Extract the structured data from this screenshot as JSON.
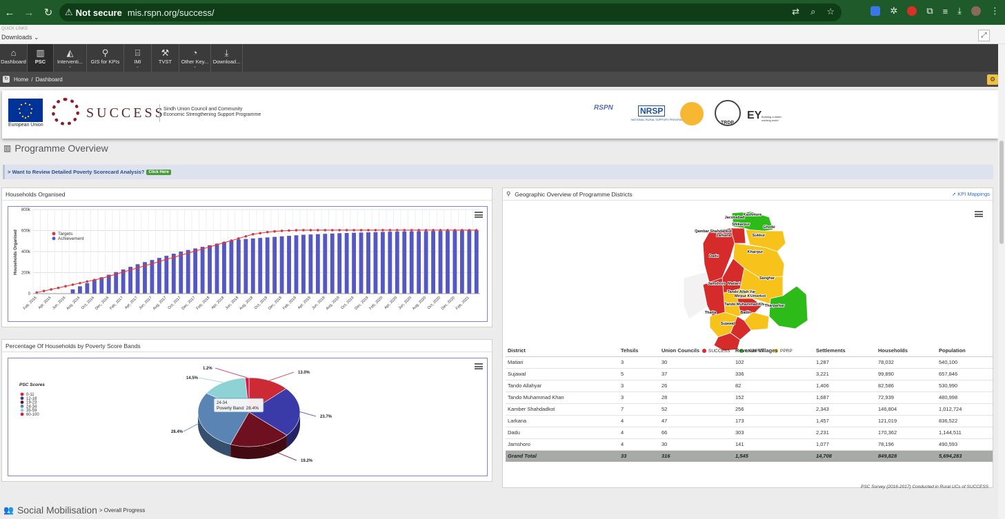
{
  "browser": {
    "not_secure": "Not secure",
    "url": "mis.rspn.org/success/"
  },
  "quicklinks": {
    "caption": "QUICK LINKS",
    "downloads": "Downloads ⌄"
  },
  "nav": [
    {
      "label": "Dashboard",
      "icon": "home-icon",
      "glyph": "⌂"
    },
    {
      "label": "PSC",
      "icon": "bar-chart-icon",
      "glyph": "▥",
      "active": true
    },
    {
      "label": "Interventi...",
      "icon": "area-chart-icon",
      "glyph": "◭",
      "dropdown": true
    },
    {
      "label": "GIS for KPIs",
      "icon": "map-marker-icon",
      "glyph": "⚲"
    },
    {
      "label": "IMI",
      "icon": "bank-icon",
      "glyph": "⌸",
      "dropdown": true
    },
    {
      "label": "TVST",
      "icon": "wrench-icon",
      "glyph": "⚒"
    },
    {
      "label": "Other Key...",
      "icon": "pie-chart-icon",
      "glyph": "◔",
      "dropdown": true
    },
    {
      "label": "Download...",
      "icon": "download-icon",
      "glyph": "⤓"
    }
  ],
  "breadcrumb": {
    "home": "Home",
    "sep": "/",
    "current": "Dashboard"
  },
  "logos": {
    "eu": "European Union",
    "success": "SUCCESS",
    "tagline1": "Sindh Union Council and Community",
    "tagline2": "Economic Strengthening Support Programme",
    "rspn": "RSPN",
    "nrsp": "NRSP",
    "nrsp_sub": "NATIONAL RURAL SUPPORT PROGRAMME",
    "trdp": "TRDP",
    "ey": "EY",
    "ey_sub": "Building a better working world"
  },
  "page_title": "Programme Overview",
  "banner": {
    "text": "> Want to Review Detailed Poverty Scorecard Analysis?",
    "button": "Click Here"
  },
  "households_panel": {
    "title": "Households Organised"
  },
  "poverty_panel": {
    "title": "Percentage Of Households by Poverty Score Bands"
  },
  "geo_panel": {
    "title": "Geographic Overview of Programme Districts",
    "kpi_link": "KPI Mappings"
  },
  "chart_data": [
    {
      "type": "bar",
      "title": "",
      "ylabel": "Households Organised",
      "ylim": [
        0,
        800000
      ],
      "yticks": [
        "0",
        "200k",
        "400k",
        "600k",
        "800k"
      ],
      "categories": [
        "Feb, 2016",
        "Mar, 2016",
        "Apr, 2016",
        "May, 2016",
        "Jun, 2016",
        "Jul, 2016",
        "Aug, 2016",
        "Sep, 2016",
        "Oct, 2016",
        "Nov, 2016",
        "Dec, 2016",
        "Jan, 2017",
        "Feb, 2017",
        "Mar, 2017",
        "Apr, 2017",
        "May, 2017",
        "Jun, 2017",
        "Jul, 2017",
        "Aug, 2017",
        "Sep, 2017",
        "Oct, 2017",
        "Nov, 2017",
        "Dec, 2017",
        "Jan, 2018",
        "Feb, 2018",
        "Mar, 2018",
        "Apr, 2018",
        "May, 2018",
        "Jun, 2018",
        "Jul, 2018",
        "Aug, 2018",
        "Sep, 2018",
        "Oct, 2018",
        "Nov, 2018",
        "Dec, 2018",
        "Jan, 2019",
        "Feb, 2019",
        "Mar, 2019",
        "Apr, 2019",
        "May, 2019",
        "Jun, 2019",
        "Jul, 2019",
        "Aug, 2019",
        "Sep, 2019",
        "Oct, 2019",
        "Nov, 2019",
        "Dec, 2019",
        "Jan, 2020",
        "Feb, 2020",
        "Mar, 2020",
        "Apr, 2020",
        "May, 2020",
        "Jun, 2020",
        "Jul, 2020",
        "Aug, 2020",
        "Sep, 2020",
        "Oct, 2020",
        "Nov, 2020",
        "Dec, 2020",
        "Jan, 2021",
        "Feb, 2021",
        "Mar, 2021"
      ],
      "xtick_labels": [
        "Feb, 2016",
        "Apr, 2016",
        "Jun, 2016",
        "Aug, 2016",
        "Oct, 2016",
        "Dec, 2016",
        "Feb, 2017",
        "Apr, 2017",
        "Jun, 2017",
        "Aug, 2017",
        "Oct, 2017",
        "Dec, 2017",
        "Feb, 2018",
        "Apr, 2018",
        "Jun, 2018",
        "Aug, 2018",
        "Oct, 2018",
        "Dec, 2018",
        "Feb, 2019",
        "Apr, 2019",
        "Jun, 2019",
        "Aug, 2019",
        "Oct, 2019",
        "Dec, 2019",
        "Feb, 2020",
        "Apr, 2020",
        "Jun, 2020",
        "Aug, 2020",
        "Oct, 2020",
        "Dec, 2020",
        "Feb, 2021"
      ],
      "series": [
        {
          "name": "Targets",
          "type": "line",
          "color": "#d9363e",
          "values": [
            10000,
            25000,
            40000,
            55000,
            70000,
            85000,
            100000,
            115000,
            130000,
            145000,
            165000,
            185000,
            205000,
            225000,
            245000,
            265000,
            285000,
            305000,
            325000,
            345000,
            365000,
            385000,
            405000,
            425000,
            445000,
            465000,
            485000,
            505000,
            525000,
            545000,
            565000,
            575000,
            585000,
            592000,
            597000,
            600000,
            603000,
            604000,
            604000,
            604000,
            604000,
            604000,
            604000,
            604000,
            604000,
            604000,
            604000,
            604000,
            604000,
            604000,
            604000,
            604000,
            604000,
            604000,
            604000,
            604000,
            604000,
            604000,
            604000,
            604000,
            604000,
            604000
          ]
        },
        {
          "name": "Achievement",
          "type": "bar",
          "color": "#5558c0",
          "values": [
            0,
            0,
            0,
            0,
            0,
            40000,
            70000,
            100000,
            130000,
            155000,
            180000,
            205000,
            230000,
            255000,
            280000,
            300000,
            320000,
            340000,
            360000,
            380000,
            400000,
            415000,
            430000,
            445000,
            460000,
            475000,
            490000,
            505000,
            515000,
            520000,
            525000,
            530000,
            535000,
            540000,
            545000,
            550000,
            555000,
            560000,
            563000,
            566000,
            569000,
            572000,
            575000,
            577000,
            579000,
            581000,
            583000,
            585000,
            587000,
            589000,
            590000,
            591000,
            592000,
            593000,
            594000,
            595000,
            596000,
            597000,
            598000,
            599000,
            600000,
            601000
          ]
        }
      ],
      "legend": "top-left",
      "grid": true
    },
    {
      "type": "pie",
      "title": "",
      "legend_title": "PSC Scores",
      "categories": [
        "0-11",
        "12-18",
        "19-23",
        "24-34",
        "35-59",
        "60-100"
      ],
      "values": [
        13.0,
        23.7,
        19.2,
        28.4,
        14.5,
        1.2
      ],
      "labels": [
        "13.0%",
        "23.7%",
        "19.2%",
        "28.4%",
        "14.5%",
        "1.2%"
      ],
      "colors": [
        "#cc2a35",
        "#3a3aa8",
        "#6e1020",
        "#5a84b4",
        "#8ed2d6",
        "#d41a4a"
      ],
      "tooltip": {
        "title": "24-34",
        "text": "Poverty Band: 28.4%"
      }
    },
    {
      "type": "map",
      "legend": [
        {
          "name": "SUCCESS",
          "color": "#d62b2b"
        },
        {
          "name": "UCBPRP",
          "color": "#2dbb1a"
        },
        {
          "name": "PPRP",
          "color": "#f7c21a"
        }
      ],
      "district_labels": [
        "Kashmore",
        "Jacobabad",
        "Shikarpur",
        "Ghotki",
        "Qambar Shahdadkot",
        "Larkana",
        "Sukkur",
        "Khairpur",
        "Dadu",
        "Sanghar",
        "Jamshoro",
        "Matiari",
        "Tando Allah Yar",
        "Mirpur Khas",
        "Umerkot",
        "Tando Muhammad Khan",
        "Tharparkar",
        "Thatta",
        "Badin",
        "Sujawal"
      ]
    }
  ],
  "district_table": {
    "columns": [
      "District",
      "Tehsils",
      "Union Councils",
      "Revenue Villages",
      "Settlements",
      "Households",
      "Population"
    ],
    "rows": [
      [
        "Matiari",
        "3",
        "30",
        "102",
        "1,287",
        "78,032",
        "540,100"
      ],
      [
        "Sujawal",
        "5",
        "37",
        "336",
        "3,221",
        "99,890",
        "657,846"
      ],
      [
        "Tando Allahyar",
        "3",
        "26",
        "82",
        "1,406",
        "82,586",
        "530,990"
      ],
      [
        "Tando Muhammad Khan",
        "3",
        "28",
        "152",
        "1,687",
        "72,939",
        "480,998"
      ],
      [
        "Kamber Shahdadkot",
        "7",
        "52",
        "256",
        "2,343",
        "146,804",
        "1,012,724"
      ],
      [
        "Larkana",
        "4",
        "47",
        "173",
        "1,457",
        "121,019",
        "836,522"
      ],
      [
        "Dadu",
        "4",
        "66",
        "303",
        "2,231",
        "170,362",
        "1,144,511"
      ],
      [
        "Jamshoro",
        "4",
        "30",
        "141",
        "1,077",
        "78,196",
        "490,593"
      ]
    ],
    "total": [
      "Grand Total",
      "33",
      "316",
      "1,545",
      "14,708",
      "849,828",
      "5,694,283"
    ],
    "footnote": "PSC Survey (2016-2017) Conducted in Rural UCs of SUCCESS"
  },
  "section2": {
    "title": "Social Mobilisation",
    "sub": "> Overall Progress"
  }
}
